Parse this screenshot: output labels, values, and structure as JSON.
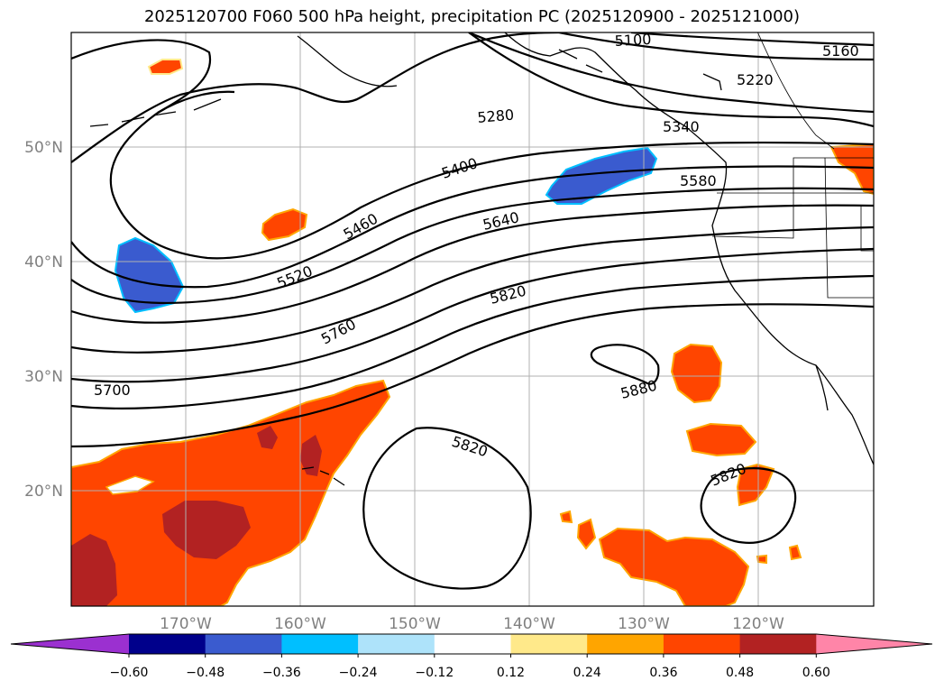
{
  "title": "2025120700 F060 500 hPa height, precipitation PC (2025120900 - 2025121000)",
  "lon_labels": [
    "170°W",
    "160°W",
    "150°W",
    "140°W",
    "130°W",
    "120°W"
  ],
  "lat_labels": [
    "50°N",
    "40°N",
    "30°N",
    "20°N"
  ],
  "contour_labels": [
    "5100",
    "5160",
    "5220",
    "5280",
    "5340",
    "5400",
    "5460",
    "5520",
    "5580",
    "5640",
    "5700",
    "5760",
    "5820",
    "5820",
    "5820",
    "5880"
  ],
  "colorbar": {
    "ticks": [
      "−0.60",
      "−0.48",
      "−0.36",
      "−0.24",
      "−0.12",
      "0.12",
      "0.24",
      "0.36",
      "0.48",
      "0.60"
    ],
    "colors": [
      "#9b30d0",
      "#00008b",
      "#3a5bcf",
      "#00bfff",
      "#aee3fa",
      "#ffffff",
      "#ffe98a",
      "#ffa500",
      "#ff4500",
      "#b22222",
      "#ff85a8"
    ]
  }
}
